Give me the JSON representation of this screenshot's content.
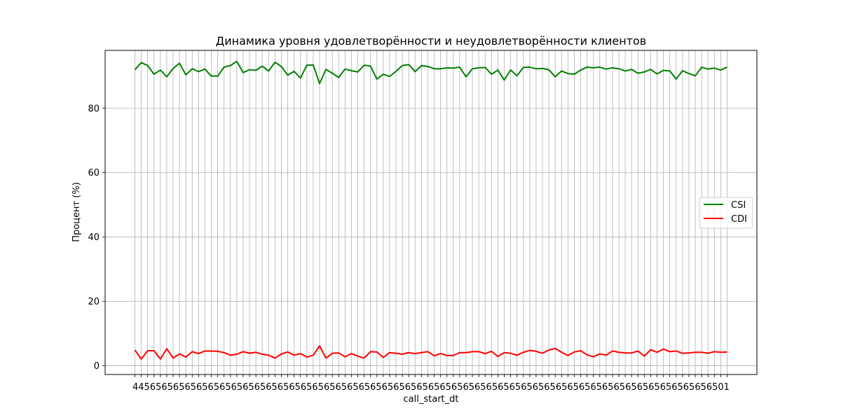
{
  "chart_data": {
    "type": "line",
    "title": "Динамика уровня удовлетворённости и неудовлетворённости клиентов",
    "xlabel": "call_start_dt",
    "ylabel": "Процент (%)",
    "x_tick_text": "4456565656565656565656565656565656565656565656565656565656565656565656565656565656565656565656565656501",
    "y_ticks": [
      0,
      20,
      40,
      60,
      80
    ],
    "ylim": [
      -2.7,
      98
    ],
    "grid": true,
    "legend_position": "center-right",
    "point_count": 94,
    "series": [
      {
        "name": "CSI",
        "color": "#008000",
        "values": [
          92.0,
          94.2,
          93.3,
          90.6,
          91.9,
          89.8,
          92.4,
          94.0,
          90.4,
          92.3,
          91.4,
          92.2,
          90.0,
          90.0,
          92.8,
          93.3,
          94.6,
          91.1,
          92.0,
          91.8,
          93.1,
          91.6,
          94.3,
          93.0,
          90.3,
          91.5,
          89.4,
          93.4,
          93.5,
          87.7,
          92.1,
          90.9,
          89.6,
          92.2,
          91.7,
          91.3,
          93.4,
          93.1,
          89.1,
          90.6,
          89.9,
          91.5,
          93.3,
          93.6,
          91.4,
          93.3,
          93.0,
          92.3,
          92.3,
          92.6,
          92.5,
          92.8,
          89.8,
          92.3,
          92.6,
          92.7,
          90.6,
          91.9,
          88.8,
          91.9,
          90.1,
          92.7,
          92.8,
          92.3,
          92.4,
          92.0,
          89.8,
          91.6,
          90.8,
          90.6,
          91.9,
          92.8,
          92.6,
          92.8,
          92.2,
          92.6,
          92.3,
          91.6,
          92.1,
          90.9,
          91.3,
          92.1,
          90.7,
          91.8,
          91.6,
          89.1,
          91.7,
          90.8,
          90.1,
          92.8,
          92.2,
          92.5,
          91.9,
          92.8
        ]
      },
      {
        "name": "CDI",
        "color": "#ff0000",
        "values": [
          4.9,
          2.1,
          4.7,
          4.7,
          2.1,
          5.3,
          2.4,
          3.7,
          2.7,
          4.4,
          3.8,
          4.6,
          4.6,
          4.5,
          4.1,
          3.3,
          3.6,
          4.4,
          3.9,
          4.2,
          3.6,
          3.3,
          2.4,
          3.7,
          4.3,
          3.3,
          3.8,
          2.7,
          3.3,
          6.2,
          2.4,
          3.9,
          4.0,
          2.8,
          3.8,
          3.0,
          2.4,
          4.4,
          4.3,
          2.6,
          4.1,
          3.9,
          3.6,
          4.1,
          3.8,
          4.1,
          4.4,
          3.1,
          3.8,
          3.2,
          3.2,
          4.1,
          4.1,
          4.4,
          4.4,
          3.8,
          4.5,
          2.9,
          4.1,
          3.9,
          3.3,
          4.2,
          4.8,
          4.5,
          3.9,
          4.9,
          5.4,
          4.2,
          3.2,
          4.3,
          4.7,
          3.4,
          2.8,
          3.7,
          3.3,
          4.6,
          4.2,
          4.0,
          4.0,
          4.6,
          3.0,
          5.0,
          4.2,
          5.2,
          4.4,
          4.6,
          3.9,
          4.0,
          4.2,
          4.2,
          3.9,
          4.4,
          4.2,
          4.3
        ]
      }
    ]
  }
}
